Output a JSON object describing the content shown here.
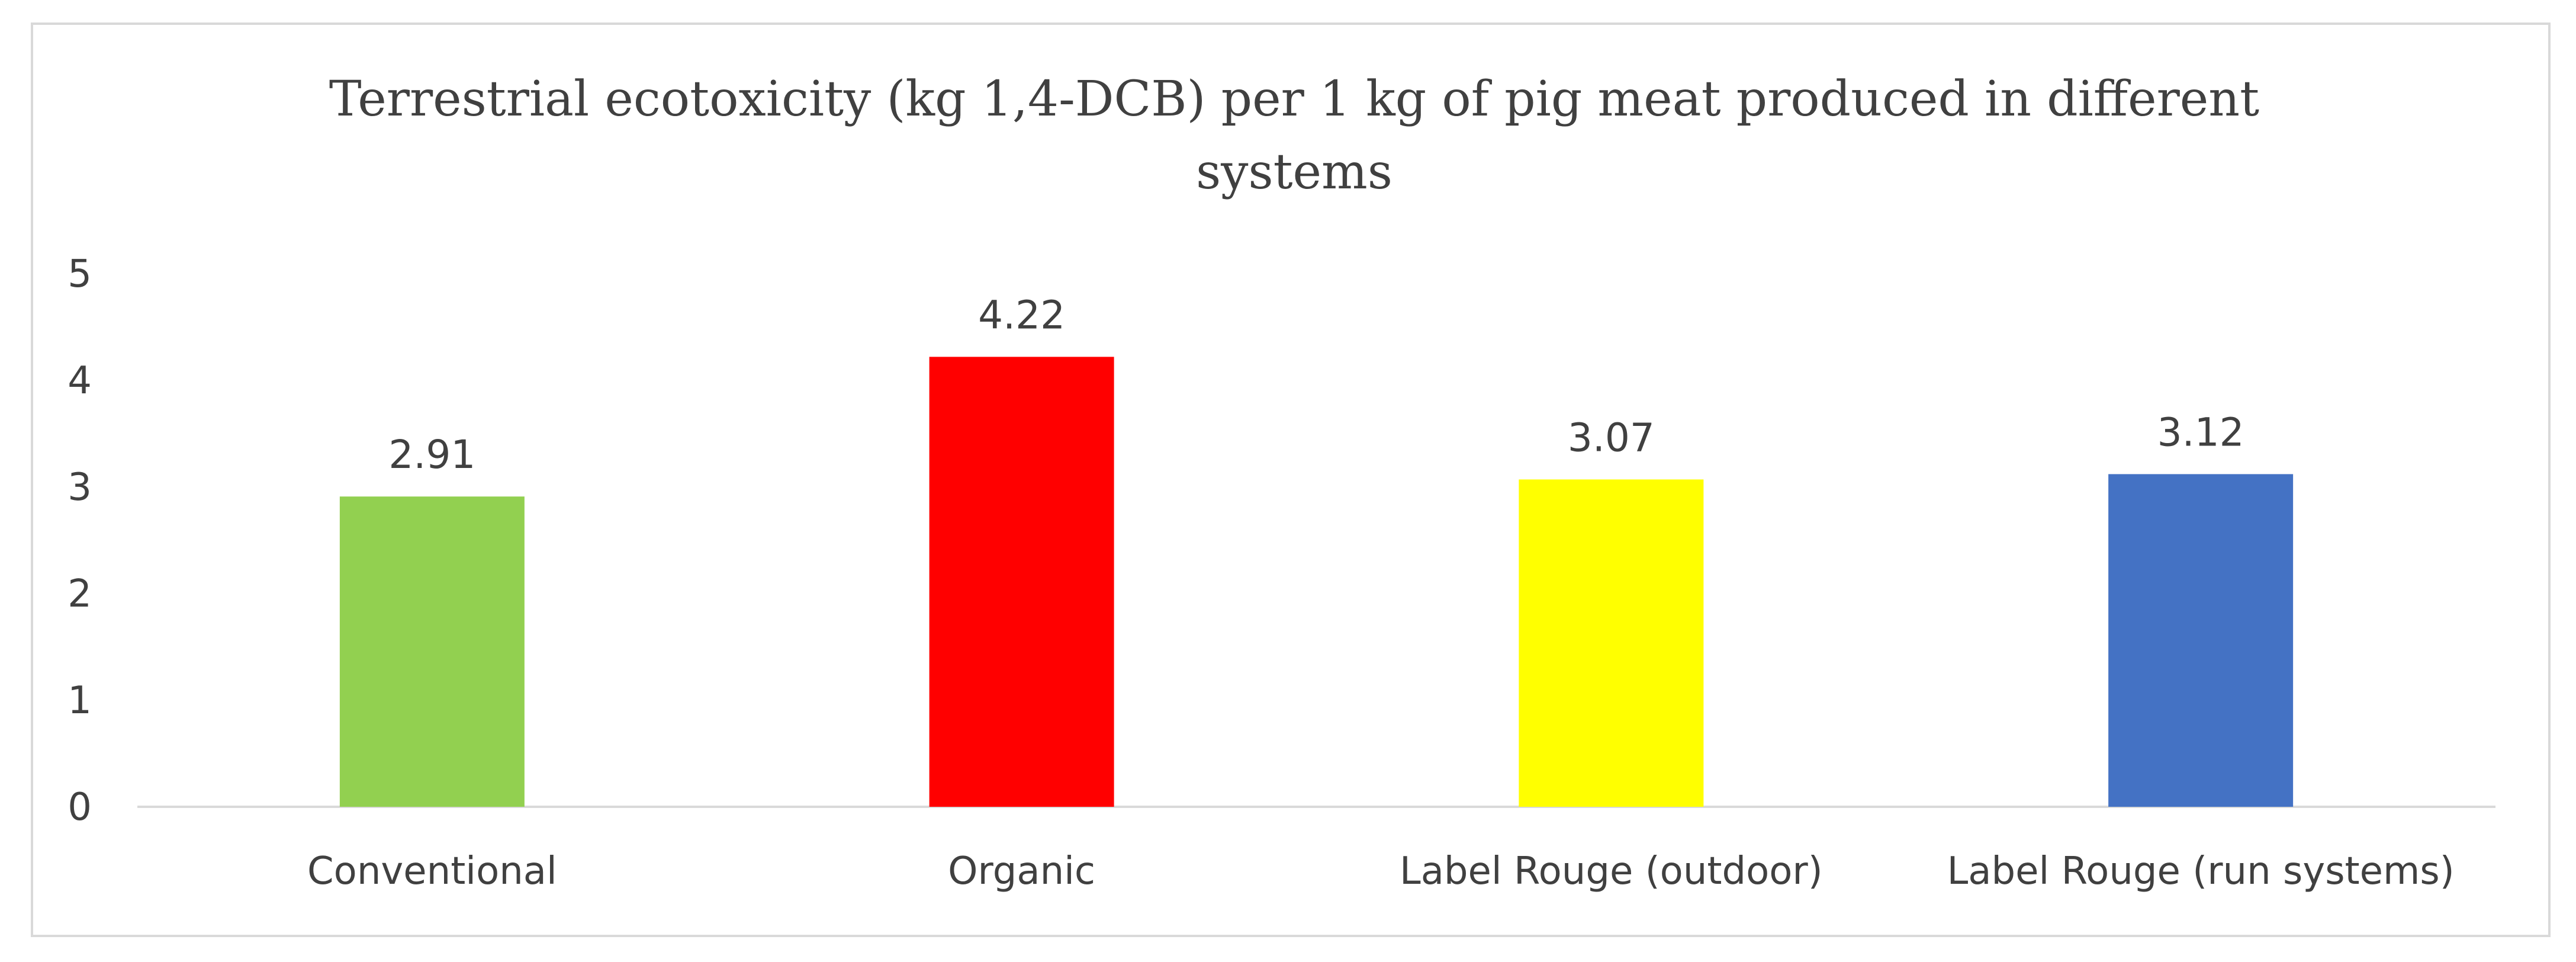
{
  "chart_data": {
    "type": "bar",
    "title_lines": [
      "Terrestrial ecotoxicity (kg 1,4-DCB) per 1 kg of pig meat produced in different",
      "systems"
    ],
    "categories": [
      "Conventional",
      "Organic",
      "Label Rouge (outdoor)",
      "Label Rouge (run systems)"
    ],
    "values": [
      2.91,
      4.22,
      3.07,
      3.12
    ],
    "data_labels": [
      "2.91",
      "4.22",
      "3.07",
      "3.12"
    ],
    "colors": [
      "#92d050",
      "#ff0000",
      "#ffff00",
      "#4472c4"
    ],
    "ylim": [
      0,
      5
    ],
    "yticks": [
      "0",
      "1",
      "2",
      "3",
      "4",
      "5"
    ],
    "xlabel": "",
    "ylabel": "",
    "gridlines": false,
    "legend": "none"
  }
}
